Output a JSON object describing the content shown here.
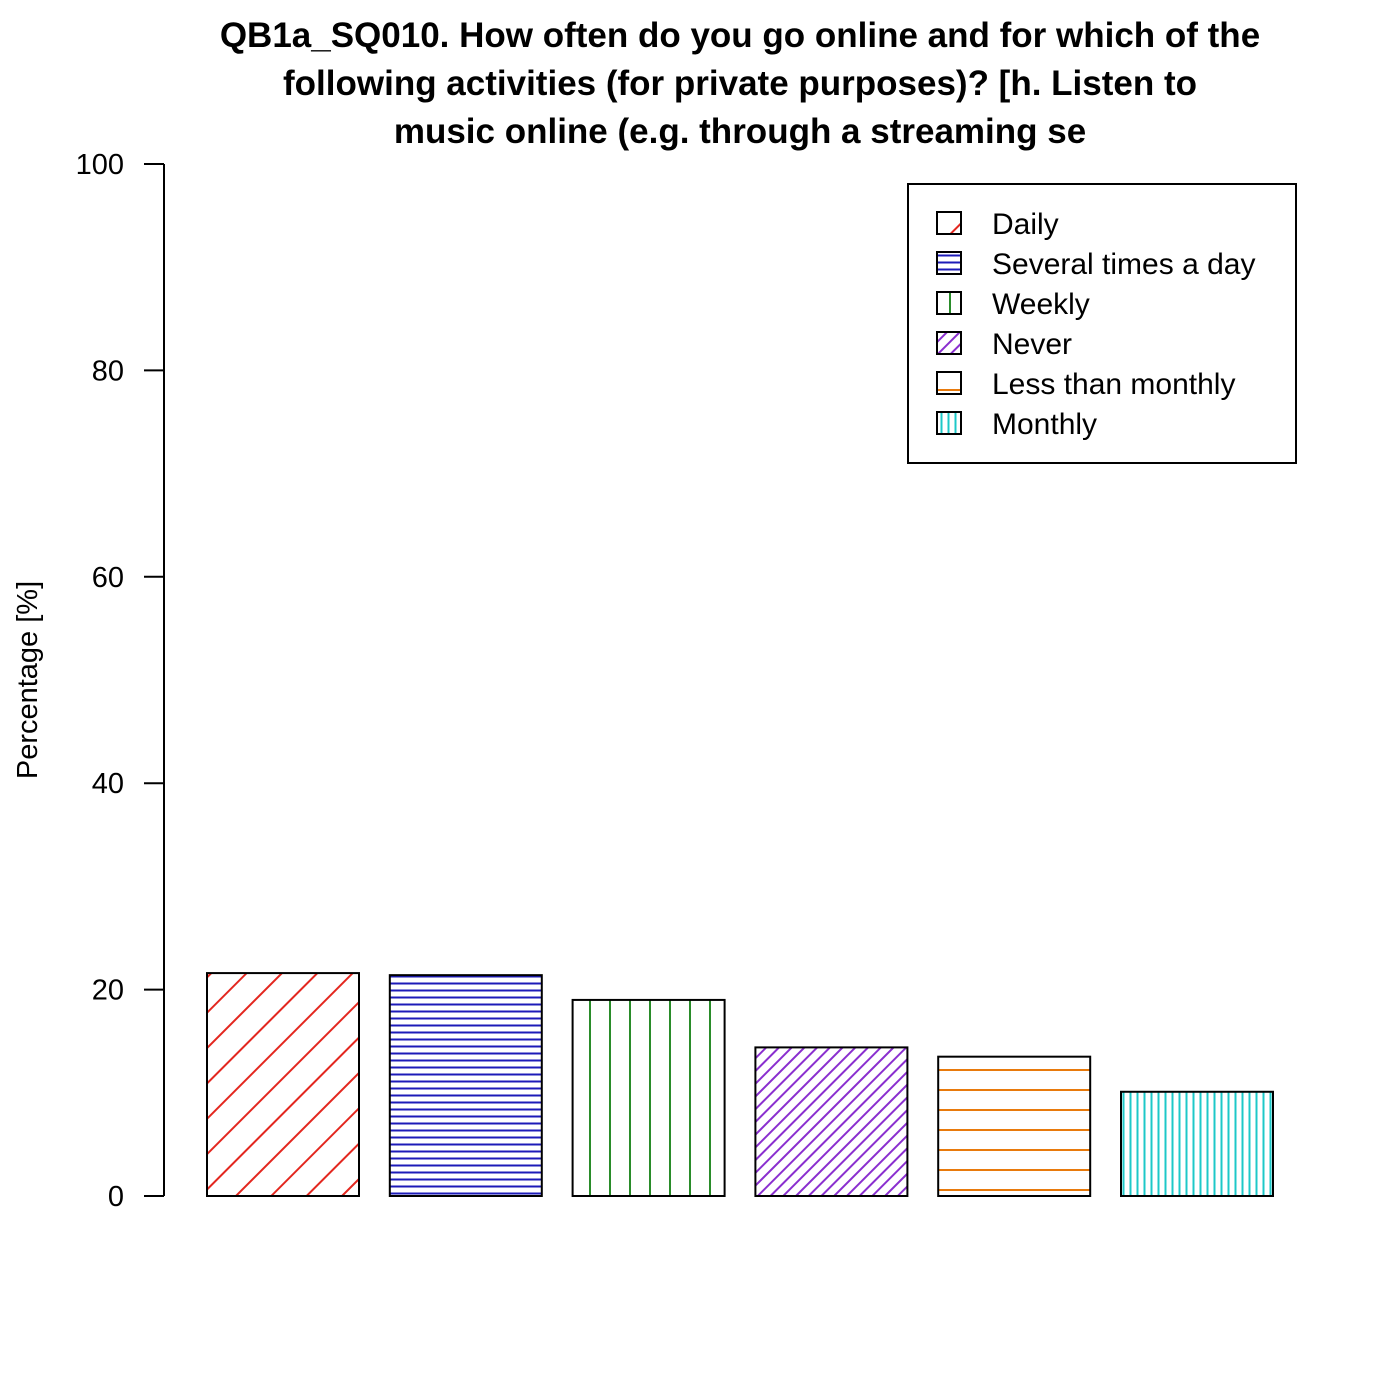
{
  "chart_data": {
    "type": "bar",
    "title_lines": [
      "QB1a_SQ010. How often do you go online and for which of the",
      "following activities (for private purposes)? [h. Listen to",
      "music online (e.g. through a streaming se"
    ],
    "ylabel": "Percentage [%]",
    "xlabel": "",
    "ylim": [
      0,
      100
    ],
    "yticks": [
      "0",
      "20",
      "40",
      "60",
      "80",
      "100"
    ],
    "grid": false,
    "legend_position": "top-right",
    "categories": [
      "Daily",
      "Several times a day",
      "Weekly",
      "Never",
      "Less than monthly",
      "Monthly"
    ],
    "values": [
      21.6,
      21.4,
      19.0,
      14.4,
      13.5,
      10.1
    ],
    "colors": [
      "#e3271f",
      "#1d1bb8",
      "#2a8c2a",
      "#8a2fcf",
      "#e87a0c",
      "#1ec8c8"
    ],
    "patterns": [
      "diag-wide",
      "horiz-dense",
      "vert-wide",
      "diag-dense",
      "horiz-wide",
      "vert-dense"
    ]
  }
}
